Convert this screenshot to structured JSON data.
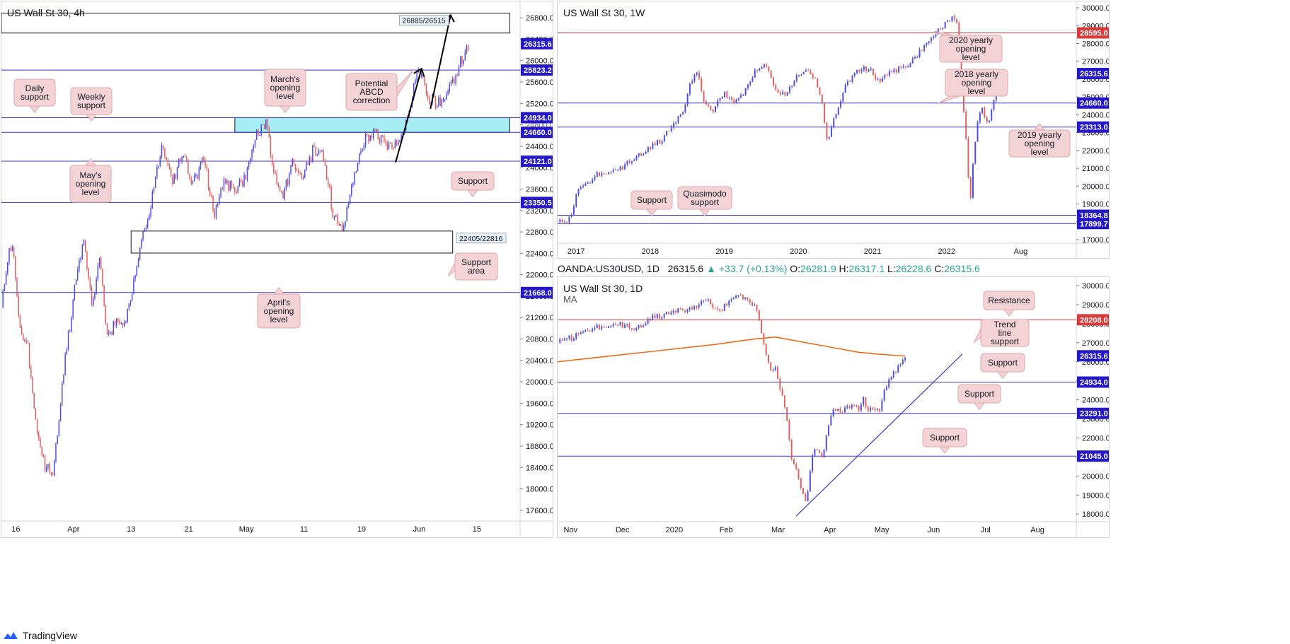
{
  "app": {
    "brand": "TradingView",
    "colors": {
      "up": "#4f4ce6",
      "down": "#e0605f",
      "level": "#3b34d6",
      "level_red": "#d93b3b",
      "ma": "#ef6c1a",
      "zone_fill": "#a6eef3",
      "callout_bg": "#f3d3d5",
      "callout_border": "#e4a7ab",
      "price_tag": "#2418c9"
    }
  },
  "daily_header": {
    "symbol": "OANDA:US30USD, 1D",
    "close": "26315.6",
    "change": "▲ +33.7 (+0.13%)",
    "o_label": "O:",
    "o": "26281.9",
    "h_label": "H:",
    "h": "26317.1",
    "l_label": "L:",
    "l": "26228.6",
    "c_label": "C:",
    "c": "26315.6"
  },
  "chart_data": [
    {
      "id": "4h",
      "type": "candlestick",
      "title": "US Wall St 30, 4h",
      "ylim": [
        17400,
        27000
      ],
      "yticks": [
        17600,
        18000,
        18400,
        18800,
        19200,
        19600,
        20000,
        20400,
        20800,
        21200,
        21600,
        22000,
        22400,
        22800,
        23200,
        23600,
        24000,
        24400,
        24800,
        25200,
        25600,
        26000,
        26400,
        26800
      ],
      "xticks": [
        "16",
        "Apr",
        "13",
        "21",
        "May",
        "11",
        "19",
        "Jun",
        "15"
      ],
      "path": [
        [
          0,
          21400
        ],
        [
          0.02,
          22700
        ],
        [
          0.035,
          21000
        ],
        [
          0.05,
          20700
        ],
        [
          0.07,
          19000
        ],
        [
          0.085,
          18400
        ],
        [
          0.1,
          18300
        ],
        [
          0.12,
          20200
        ],
        [
          0.145,
          22000
        ],
        [
          0.16,
          22600
        ],
        [
          0.175,
          21400
        ],
        [
          0.19,
          22300
        ],
        [
          0.205,
          20800
        ],
        [
          0.22,
          21100
        ],
        [
          0.235,
          21000
        ],
        [
          0.25,
          21600
        ],
        [
          0.27,
          22600
        ],
        [
          0.29,
          23400
        ],
        [
          0.31,
          24400
        ],
        [
          0.33,
          23700
        ],
        [
          0.35,
          24300
        ],
        [
          0.37,
          23700
        ],
        [
          0.39,
          24200
        ],
        [
          0.41,
          23100
        ],
        [
          0.43,
          23700
        ],
        [
          0.45,
          23600
        ],
        [
          0.47,
          23800
        ],
        [
          0.49,
          24600
        ],
        [
          0.51,
          24800
        ],
        [
          0.53,
          23700
        ],
        [
          0.545,
          23500
        ],
        [
          0.56,
          24100
        ],
        [
          0.58,
          23800
        ],
        [
          0.6,
          24300
        ],
        [
          0.62,
          24300
        ],
        [
          0.64,
          23100
        ],
        [
          0.66,
          22900
        ],
        [
          0.68,
          23800
        ],
        [
          0.7,
          24500
        ],
        [
          0.72,
          24700
        ],
        [
          0.74,
          24400
        ],
        [
          0.76,
          24500
        ],
        [
          0.78,
          24800
        ],
        [
          0.8,
          25700
        ],
        [
          0.81,
          25800
        ],
        [
          0.825,
          25300
        ],
        [
          0.84,
          25200
        ],
        [
          0.86,
          25400
        ],
        [
          0.875,
          25700
        ],
        [
          0.89,
          26100
        ],
        [
          0.9,
          26300
        ]
      ],
      "levels": [
        {
          "price": 25823.2,
          "label": "25823.2",
          "color": "blue"
        },
        {
          "price": 24934.0,
          "label": "24934.0",
          "color": "blue"
        },
        {
          "price": 24660.0,
          "label": "24660.0",
          "color": "blue"
        },
        {
          "price": 24121.0,
          "label": "24121.0",
          "color": "blue"
        },
        {
          "price": 23350.5,
          "label": "23350.5",
          "color": "blue"
        },
        {
          "price": 21668.0,
          "label": "21668.0",
          "color": "blue"
        }
      ],
      "current": {
        "price": 26315.6,
        "label": "26315.6"
      },
      "partial_ticks": [
        "24800.0"
      ],
      "zones": [
        {
          "from": 24660,
          "to": 24934,
          "x0": 0.45,
          "x1": 0.98,
          "fill": true
        },
        {
          "from": 26515,
          "to": 26885,
          "x0": 0.0,
          "x1": 0.98,
          "fill": false,
          "label": "26885/26515"
        },
        {
          "from": 22405,
          "to": 22816,
          "x0": 0.25,
          "x1": 0.87,
          "fill": false,
          "label": "22405/22816"
        }
      ],
      "callouts": [
        "Daily support",
        "Weekly support",
        "March's opening level",
        "Potential ABCD correction",
        "May's opening level",
        "Support",
        "Support area",
        "April's opening level"
      ]
    },
    {
      "id": "1w",
      "type": "candlestick",
      "title": "US Wall St 30, 1W",
      "ylim": [
        16800,
        30200
      ],
      "yticks": [
        17000,
        18000,
        19000,
        20000,
        21000,
        22000,
        23000,
        24000,
        25000,
        26000,
        27000,
        28000,
        29000,
        30000
      ],
      "xticks": [
        "2017",
        "2018",
        "2019",
        "2020",
        "2021",
        "2022",
        "Aug"
      ],
      "path": [
        [
          0,
          18000
        ],
        [
          0.02,
          17900
        ],
        [
          0.04,
          19800
        ],
        [
          0.08,
          20700
        ],
        [
          0.12,
          21000
        ],
        [
          0.16,
          21800
        ],
        [
          0.2,
          22600
        ],
        [
          0.24,
          24000
        ],
        [
          0.255,
          25700
        ],
        [
          0.27,
          26500
        ],
        [
          0.28,
          24700
        ],
        [
          0.3,
          24300
        ],
        [
          0.32,
          25200
        ],
        [
          0.34,
          24600
        ],
        [
          0.36,
          25300
        ],
        [
          0.38,
          26400
        ],
        [
          0.4,
          26800
        ],
        [
          0.42,
          25500
        ],
        [
          0.44,
          25000
        ],
        [
          0.46,
          26100
        ],
        [
          0.48,
          26500
        ],
        [
          0.5,
          25800
        ],
        [
          0.51,
          24500
        ],
        [
          0.52,
          22500
        ],
        [
          0.54,
          24500
        ],
        [
          0.56,
          25900
        ],
        [
          0.58,
          26500
        ],
        [
          0.6,
          26600
        ],
        [
          0.62,
          25800
        ],
        [
          0.64,
          26300
        ],
        [
          0.66,
          26600
        ],
        [
          0.68,
          26900
        ],
        [
          0.7,
          27600
        ],
        [
          0.72,
          28300
        ],
        [
          0.74,
          28900
        ],
        [
          0.76,
          29400
        ],
        [
          0.77,
          29000
        ],
        [
          0.78,
          25400
        ],
        [
          0.79,
          21500
        ],
        [
          0.795,
          18700
        ],
        [
          0.8,
          21100
        ],
        [
          0.81,
          23800
        ],
        [
          0.82,
          24300
        ],
        [
          0.83,
          23400
        ],
        [
          0.84,
          24600
        ],
        [
          0.85,
          26300
        ]
      ],
      "levels": [
        {
          "price": 28595.0,
          "label": "28595.0",
          "color": "red"
        },
        {
          "price": 24660.0,
          "label": "24660.0",
          "color": "blue"
        },
        {
          "price": 23313.0,
          "label": "23313.0",
          "color": "blue"
        },
        {
          "price": 18364.8,
          "label": "18364.8",
          "color": "blue"
        },
        {
          "price": 17899.7,
          "label": "17899.7",
          "color": "blue"
        }
      ],
      "current": {
        "price": 26315.6,
        "label": "26315.6"
      },
      "callouts": [
        "2020 yearly opening level",
        "2018 yearly opening level",
        "2019 yearly opening level",
        "Support",
        "Quasimodo support"
      ]
    },
    {
      "id": "1d",
      "type": "candlestick",
      "title": "US Wall St 30, 1D",
      "indicator": "MA",
      "ylim": [
        17600,
        30300
      ],
      "yticks": [
        18000,
        19000,
        20000,
        21000,
        22000,
        23000,
        24000,
        25000,
        26000,
        27000,
        28000,
        29000,
        30000
      ],
      "xticks": [
        "Nov",
        "Dec",
        "2020",
        "Feb",
        "Mar",
        "Apr",
        "May",
        "Jun",
        "Jul",
        "Aug"
      ],
      "path": [
        [
          0,
          27000
        ],
        [
          0.03,
          27300
        ],
        [
          0.06,
          27700
        ],
        [
          0.09,
          27900
        ],
        [
          0.12,
          28000
        ],
        [
          0.15,
          27700
        ],
        [
          0.18,
          28300
        ],
        [
          0.21,
          28500
        ],
        [
          0.24,
          28700
        ],
        [
          0.27,
          28900
        ],
        [
          0.29,
          29300
        ],
        [
          0.31,
          28600
        ],
        [
          0.33,
          29100
        ],
        [
          0.35,
          29500
        ],
        [
          0.37,
          29200
        ],
        [
          0.385,
          28700
        ],
        [
          0.4,
          26500
        ],
        [
          0.41,
          25500
        ],
        [
          0.42,
          25800
        ],
        [
          0.43,
          24500
        ],
        [
          0.44,
          23300
        ],
        [
          0.45,
          21000
        ],
        [
          0.46,
          20300
        ],
        [
          0.47,
          19300
        ],
        [
          0.48,
          18500
        ],
        [
          0.49,
          21000
        ],
        [
          0.5,
          21500
        ],
        [
          0.51,
          20800
        ],
        [
          0.52,
          22500
        ],
        [
          0.53,
          23400
        ],
        [
          0.54,
          23700
        ],
        [
          0.55,
          23300
        ],
        [
          0.56,
          23700
        ],
        [
          0.57,
          23700
        ],
        [
          0.58,
          23500
        ],
        [
          0.59,
          24000
        ],
        [
          0.6,
          23400
        ],
        [
          0.61,
          23600
        ],
        [
          0.62,
          23300
        ],
        [
          0.63,
          24400
        ],
        [
          0.64,
          25000
        ],
        [
          0.65,
          25500
        ],
        [
          0.66,
          25800
        ],
        [
          0.67,
          26300
        ]
      ],
      "ma": [
        [
          0,
          26000
        ],
        [
          0.1,
          26300
        ],
        [
          0.2,
          26600
        ],
        [
          0.3,
          26900
        ],
        [
          0.38,
          27200
        ],
        [
          0.42,
          27300
        ],
        [
          0.46,
          27100
        ],
        [
          0.52,
          26800
        ],
        [
          0.58,
          26500
        ],
        [
          0.62,
          26400
        ],
        [
          0.67,
          26300
        ]
      ],
      "trendline": [
        [
          0.46,
          17900
        ],
        [
          0.78,
          26400
        ]
      ],
      "levels": [
        {
          "price": 28208.0,
          "label": "28208.0",
          "color": "red"
        },
        {
          "price": 24934.0,
          "label": "24934.0",
          "color": "blue"
        },
        {
          "price": 23291.0,
          "label": "23291.0",
          "color": "blue"
        },
        {
          "price": 21045.0,
          "label": "21045.0",
          "color": "blue"
        }
      ],
      "current": {
        "price": 26315.6,
        "label": "26315.6"
      },
      "callouts": [
        "Resistance",
        "Trend line support",
        "Support",
        "Support",
        "Support"
      ]
    }
  ]
}
